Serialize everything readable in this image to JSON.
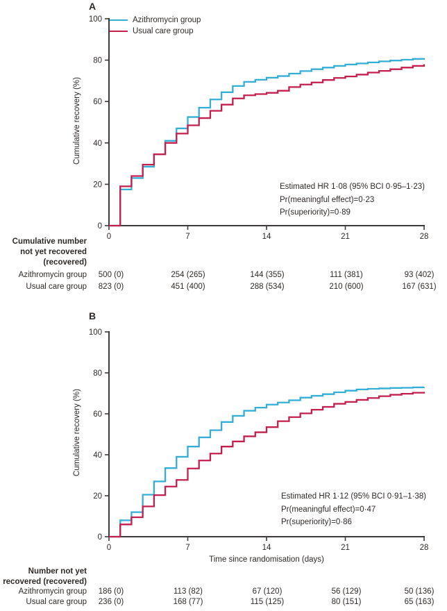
{
  "xlabel": "Time since randomisation (days)",
  "chart_data": [
    {
      "type": "line",
      "subtype": "step-cumulative-incidence",
      "panel": "A",
      "ylabel": "Cumulative recovery (%)",
      "xlim": [
        0,
        28
      ],
      "ylim": [
        0,
        100
      ],
      "xticks": [
        0,
        7,
        14,
        21,
        28
      ],
      "yticks": [
        0,
        20,
        40,
        60,
        80,
        100
      ],
      "legend_position": "top-left",
      "grid": false,
      "x_unit": "days",
      "series": [
        {
          "name": "Azithromycin group",
          "color": "#35aed6",
          "values": [
            0,
            17.5,
            23,
            28.5,
            34.5,
            41,
            47,
            52.5,
            57,
            61,
            64.5,
            67.5,
            69.5,
            70.5,
            71.5,
            72.3,
            73.5,
            74.7,
            75.6,
            76.4,
            77.2,
            77.9,
            78.4,
            78.9,
            79.4,
            79.8,
            80.2,
            80.6,
            81
          ]
        },
        {
          "name": "Usual care group",
          "color": "#c41e4e",
          "values": [
            0,
            19,
            24,
            29.5,
            34.5,
            40,
            44.5,
            48.5,
            52,
            55.5,
            58.5,
            61.5,
            63,
            63.6,
            64.2,
            65.2,
            67,
            68.2,
            69.2,
            70.4,
            71.4,
            72.1,
            73,
            74,
            74.8,
            75.6,
            76.4,
            77.2,
            78
          ]
        }
      ],
      "annotation": [
        "Estimated HR 1·08 (95% BCI 0·95–1·23)",
        "Pr(meaningful effect)=0·23",
        "Pr(superiority)=0·89"
      ],
      "risk_table": {
        "title_lines": [
          "Cumulative number",
          "not yet recovered",
          "(recovered)"
        ],
        "timepoints": [
          0,
          7,
          14,
          21,
          28
        ],
        "rows": [
          {
            "label": "Azithromycin group",
            "values": [
              "500 (0)",
              "254 (265)",
              "144 (355)",
              "111 (381)",
              "93 (402)"
            ]
          },
          {
            "label": "Usual care group",
            "values": [
              "823 (0)",
              "451 (400)",
              "288 (534)",
              "210 (600)",
              "167 (631)"
            ]
          }
        ]
      }
    },
    {
      "type": "line",
      "subtype": "step-cumulative-incidence",
      "panel": "B",
      "ylabel": "Cumulative recovery (%)",
      "xlim": [
        0,
        28
      ],
      "ylim": [
        0,
        100
      ],
      "xticks": [
        0,
        7,
        14,
        21,
        28
      ],
      "yticks": [
        0,
        20,
        40,
        60,
        80,
        100
      ],
      "legend_position": "none",
      "grid": false,
      "x_unit": "days",
      "series": [
        {
          "name": "Azithromycin group",
          "color": "#35aed6",
          "values": [
            0,
            8,
            12,
            20.5,
            27,
            33.5,
            39,
            44,
            48.5,
            52,
            56,
            59,
            61.5,
            63,
            64.5,
            65.5,
            66.6,
            67.9,
            68.8,
            69.6,
            70.5,
            71.3,
            71.9,
            72.2,
            72.4,
            72.6,
            72.7,
            72.9,
            73
          ]
        },
        {
          "name": "Usual care group",
          "color": "#c41e4e",
          "values": [
            0,
            6,
            9.5,
            14.8,
            20.3,
            24.5,
            27.7,
            33.3,
            37.2,
            40.6,
            44,
            46.5,
            49,
            51,
            53.5,
            56.4,
            58.4,
            60.2,
            62,
            63.4,
            64.9,
            65.8,
            66.8,
            67.7,
            68.6,
            69.3,
            69.8,
            70.3,
            70.7
          ]
        }
      ],
      "annotation": [
        "Estimated HR 1·12 (95% BCI 0·91–1·38)",
        "Pr(meaningful effect)=0·47",
        "Pr(superiority)=0·86"
      ],
      "risk_table": {
        "title_lines": [
          "Number not yet",
          "recovered (recovered)"
        ],
        "timepoints": [
          0,
          7,
          14,
          21,
          28
        ],
        "rows": [
          {
            "label": "Azithromycin group",
            "values": [
              "186 (0)",
              "113 (82)",
              "67 (120)",
              "56 (129)",
              "50 (136)"
            ]
          },
          {
            "label": "Usual care group",
            "values": [
              "236 (0)",
              "168 (77)",
              "115 (125)",
              "80 (151)",
              "65 (163)"
            ]
          }
        ]
      }
    }
  ]
}
